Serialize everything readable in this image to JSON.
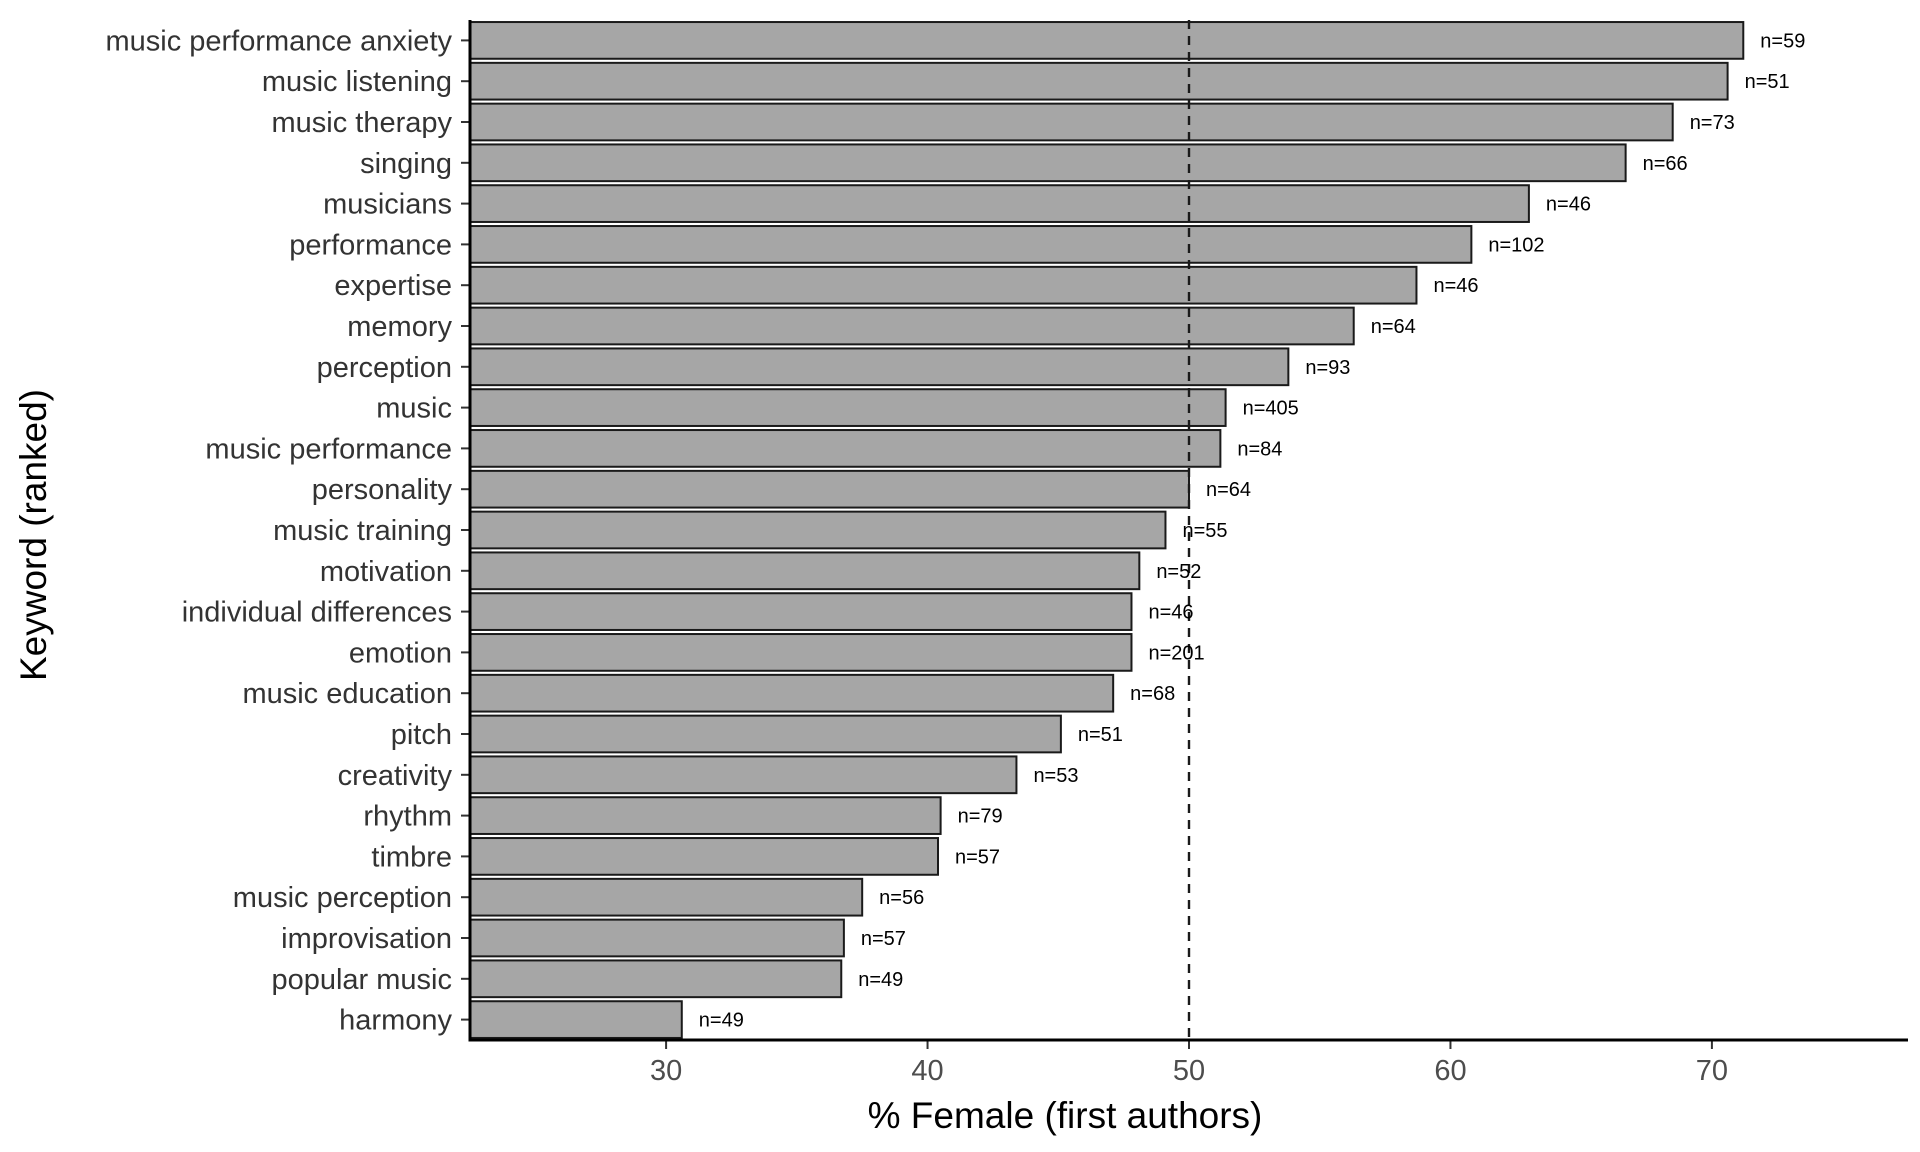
{
  "chart_data": {
    "type": "bar",
    "orientation": "horizontal",
    "xlabel": "% Female (first authors)",
    "ylabel": "Keyword (ranked)",
    "xlim": [
      22.5,
      77.5
    ],
    "xticks": [
      30,
      40,
      50,
      60,
      70
    ],
    "reference_line": 50,
    "bar_color": "#a6a6a6",
    "bar_edge_color": "#1a1a1a",
    "grid": false,
    "legend": "none",
    "categories": [
      "music performance anxiety",
      "music listening",
      "music therapy",
      "singing",
      "musicians",
      "performance",
      "expertise",
      "memory",
      "perception",
      "music",
      "music performance",
      "personality",
      "music training",
      "motivation",
      "individual differences",
      "emotion",
      "music education",
      "pitch",
      "creativity",
      "rhythm",
      "timbre",
      "music perception",
      "improvisation",
      "popular music",
      "harmony"
    ],
    "values": [
      71.2,
      70.6,
      68.5,
      66.7,
      63.0,
      60.8,
      58.7,
      56.3,
      53.8,
      51.4,
      51.2,
      50.0,
      49.1,
      48.1,
      47.8,
      47.8,
      47.1,
      45.1,
      43.4,
      40.5,
      40.4,
      37.5,
      36.8,
      36.7,
      30.6
    ],
    "labels": [
      "n=59",
      "n=51",
      "n=73",
      "n=66",
      "n=46",
      "n=102",
      "n=46",
      "n=64",
      "n=93",
      "n=405",
      "n=84",
      "n=64",
      "n=55",
      "n=52",
      "n=46",
      "n=201",
      "n=68",
      "n=51",
      "n=53",
      "n=79",
      "n=57",
      "n=56",
      "n=57",
      "n=49",
      "n=49"
    ]
  }
}
